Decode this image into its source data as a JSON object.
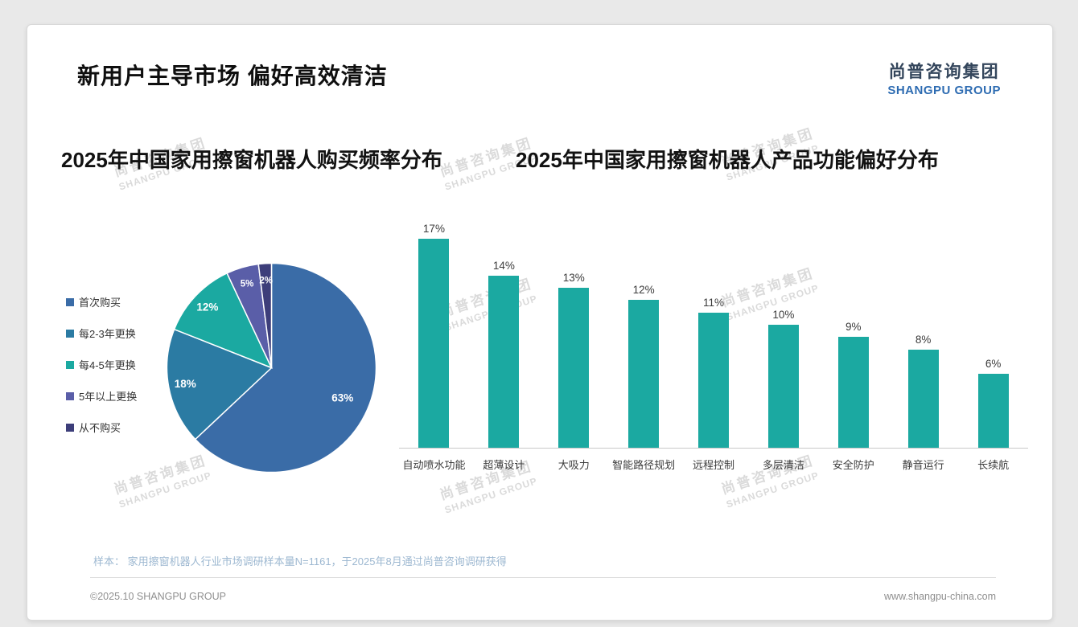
{
  "header": {
    "title": "新用户主导市场 偏好高效清洁",
    "logo_cn": "尚普咨询集团",
    "logo_en": "SHANGPU GROUP"
  },
  "watermark": {
    "cn": "尚普咨询集团",
    "en": "SHANGPU GROUP"
  },
  "chart_data": [
    {
      "type": "pie",
      "title": "2025年中国家用擦窗机器人购买频率分布",
      "categories": [
        "首次购买",
        "每2-3年更换",
        "每4-5年更换",
        "5年以上更换",
        "从不购买"
      ],
      "values": [
        63,
        18,
        12,
        5,
        2
      ],
      "unit": "%",
      "colors": [
        "#3a6ca7",
        "#2b7ba3",
        "#1ba9a1",
        "#5a5ea8",
        "#3d3e7a"
      ],
      "legend_position": "left",
      "label_format": "percent",
      "start_angle": "top",
      "direction": "clockwise"
    },
    {
      "type": "bar",
      "title": "2025年中国家用擦窗机器人产品功能偏好分布",
      "categories": [
        "自动喷水功能",
        "超薄设计",
        "大吸力",
        "智能路径规划",
        "远程控制",
        "多层清洁",
        "安全防护",
        "静音运行",
        "长续航"
      ],
      "values": [
        17,
        14,
        13,
        12,
        11,
        10,
        9,
        8,
        6
      ],
      "unit": "%",
      "bar_color": "#1ba9a1",
      "ylim": [
        0,
        18
      ],
      "grid": false,
      "value_labels": true,
      "xlabel": "",
      "ylabel": ""
    }
  ],
  "footnote": "样本： 家用擦窗机器人行业市场调研样本量N=1161，于2025年8月通过尚普咨询调研获得",
  "footer": {
    "copyright": "©2025.10 SHANGPU GROUP",
    "website": "www.shangpu-china.com"
  }
}
